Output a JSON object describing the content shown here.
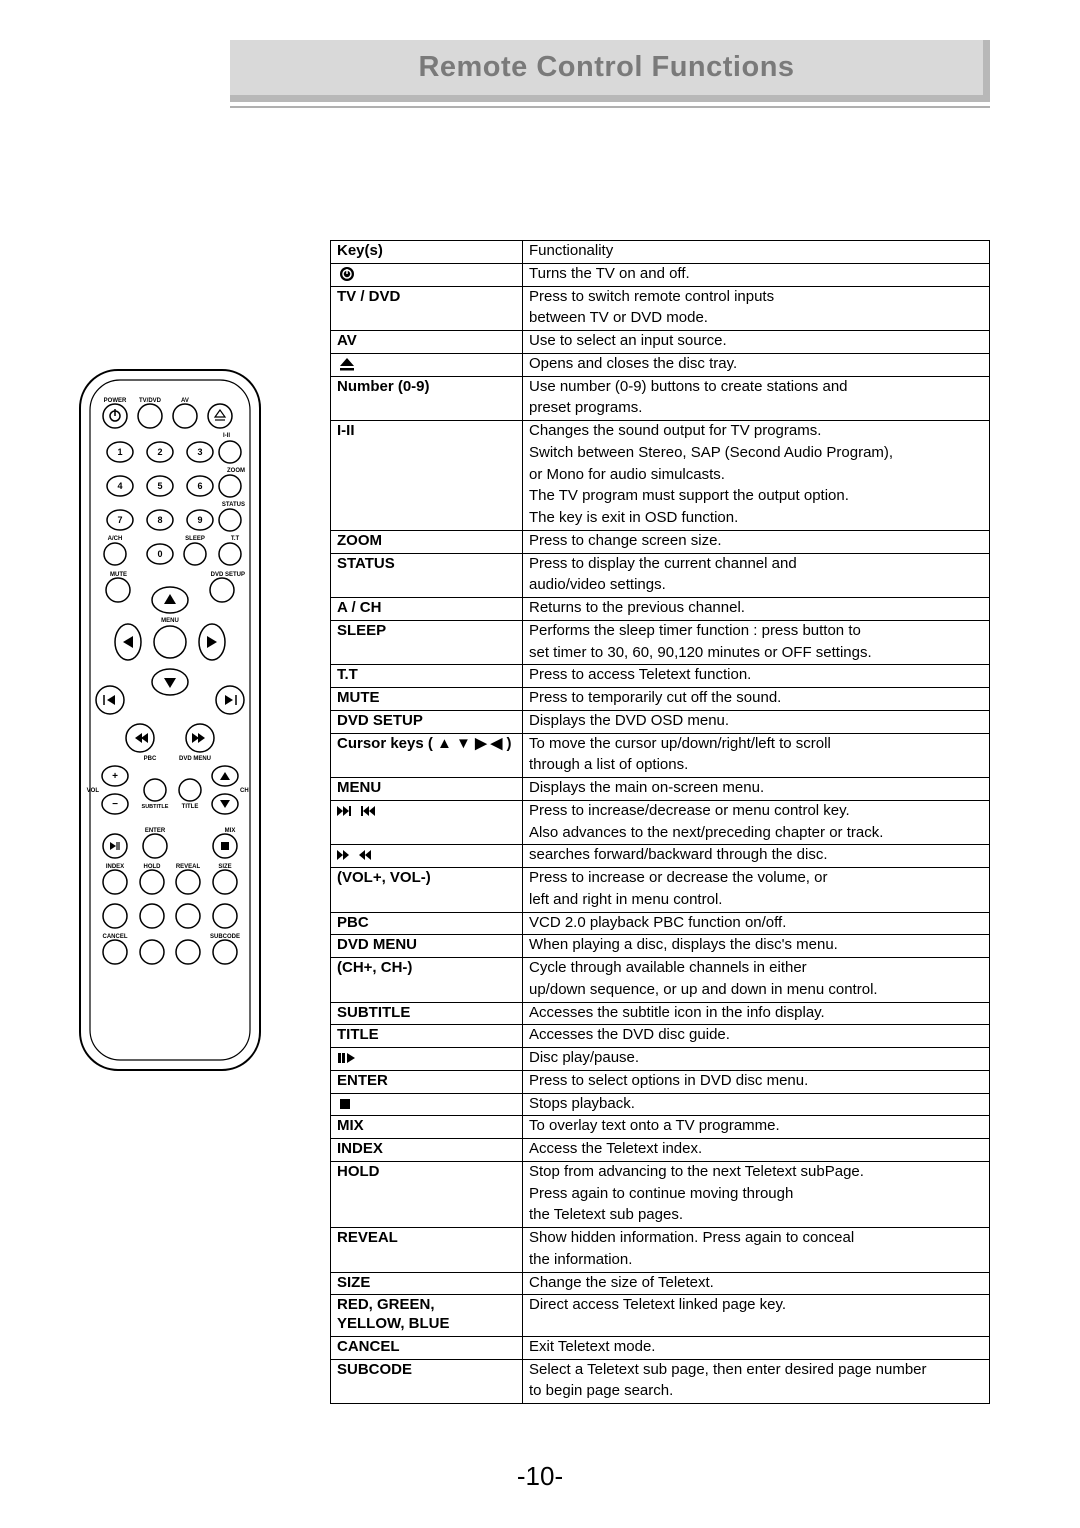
{
  "page": {
    "title": "Remote Control Functions",
    "number": "-10-"
  },
  "table": {
    "header": {
      "key": "Key(s)",
      "func": "Functionality"
    },
    "rows": [
      {
        "key_icon": "power-circle",
        "func": [
          "Turns the TV on and off."
        ]
      },
      {
        "key": "TV / DVD",
        "func": [
          "Press to switch remote control inputs",
          "between TV or DVD mode."
        ]
      },
      {
        "key": "AV",
        "func": [
          "Use to select an input source."
        ]
      },
      {
        "key_icon": "eject",
        "func": [
          "Opens and closes the disc tray."
        ]
      },
      {
        "key": "Number (0-9)",
        "func": [
          "Use number (0-9) buttons to create stations and",
          "preset programs."
        ]
      },
      {
        "key": "I-II",
        "func": [
          "Changes the sound output for TV programs.",
          "Switch between Stereo, SAP (Second Audio Program),",
          "or Mono for audio simulcasts.",
          "The TV program must support the output option.",
          "The key is exit in OSD function."
        ]
      },
      {
        "key": "ZOOM",
        "func": [
          "Press to change screen size."
        ]
      },
      {
        "key": "STATUS",
        "func": [
          "Press to display the current channel and",
          "audio/video settings."
        ]
      },
      {
        "key": "A / CH",
        "func": [
          "Returns to the previous channel."
        ]
      },
      {
        "key": "SLEEP",
        "func": [
          "Performs the sleep timer function : press button to",
          "set timer to 30, 60, 90,120 minutes or OFF settings."
        ]
      },
      {
        "key": "T.T",
        "func": [
          "Press to access Teletext function."
        ]
      },
      {
        "key": "MUTE",
        "func": [
          "Press to temporarily cut off the sound."
        ]
      },
      {
        "key": "DVD SETUP",
        "func": [
          "Displays the DVD OSD menu."
        ]
      },
      {
        "key": "Cursor keys ( ▲ ▼ ▶ ◀ )",
        "func": [
          "To move the cursor up/down/right/left to scroll",
          "through a list of options."
        ]
      },
      {
        "key": "MENU",
        "func": [
          "Displays the main on-screen menu."
        ]
      },
      {
        "key_icon": "next-prev",
        "func": [
          "Press to increase/decrease or menu control key.",
          "Also advances to the next/preceding chapter or track."
        ]
      },
      {
        "key_icon": "ff-rw",
        "func": [
          "searches forward/backward through the disc."
        ]
      },
      {
        "key": "(VOL+, VOL-)",
        "func": [
          "Press to increase or decrease the volume, or",
          "left and right in menu control."
        ]
      },
      {
        "key": "PBC",
        "func": [
          "VCD 2.0 playback PBC function on/off."
        ]
      },
      {
        "key": "DVD MENU",
        "func": [
          "When playing a disc, displays the disc's menu."
        ]
      },
      {
        "key": "(CH+, CH-)",
        "func": [
          "Cycle through available channels in either",
          "up/down sequence, or up and down in menu control."
        ]
      },
      {
        "key": "SUBTITLE",
        "func": [
          "Accesses the subtitle icon in the info display."
        ]
      },
      {
        "key": "TITLE",
        "func": [
          "Accesses the DVD disc guide."
        ]
      },
      {
        "key_icon": "play-pause",
        "func": [
          "Disc play/pause."
        ]
      },
      {
        "key": "ENTER",
        "func": [
          "Press to select options in DVD disc menu."
        ]
      },
      {
        "key_icon": "stop",
        "func": [
          "Stops playback."
        ]
      },
      {
        "key": "MIX",
        "func": [
          "To overlay text onto a TV programme."
        ]
      },
      {
        "key": "INDEX",
        "func": [
          "Access the Teletext index."
        ]
      },
      {
        "key": "HOLD",
        "func": [
          "Stop from advancing to the next Teletext subPage.",
          "Press again to continue moving through",
          "the Teletext sub pages."
        ]
      },
      {
        "key": "REVEAL",
        "func": [
          "Show hidden information. Press again to conceal",
          "the information."
        ]
      },
      {
        "key": "SIZE",
        "func": [
          "Change the size of Teletext."
        ]
      },
      {
        "key": "RED, GREEN,\nYELLOW, BLUE",
        "func": [
          "Direct access Teletext linked page key."
        ]
      },
      {
        "key": "CANCEL",
        "func": [
          "Exit Teletext mode."
        ]
      },
      {
        "key": "SUBCODE",
        "func": [
          "Select a Teletext sub page, then enter desired page number",
          "to begin page search."
        ]
      }
    ]
  },
  "remote": {
    "labels_row1": [
      "POWER",
      "TV/DVD",
      "AV"
    ],
    "right_tiny_labels": [
      "I-II",
      "ZOOM",
      "STATUS",
      "T.T"
    ],
    "left_tiny_labels": [
      "A/CH",
      "MUTE"
    ],
    "mid_labels": [
      "SLEEP",
      "DVD SETUP",
      "MENU",
      "PBC",
      "DVD MENU",
      "VOL",
      "SUBTITLE",
      "TITLE",
      "CH",
      "ENTER",
      "MIX",
      "INDEX",
      "HOLD",
      "REVEAL",
      "SIZE",
      "CANCEL",
      "SUBCODE"
    ]
  }
}
